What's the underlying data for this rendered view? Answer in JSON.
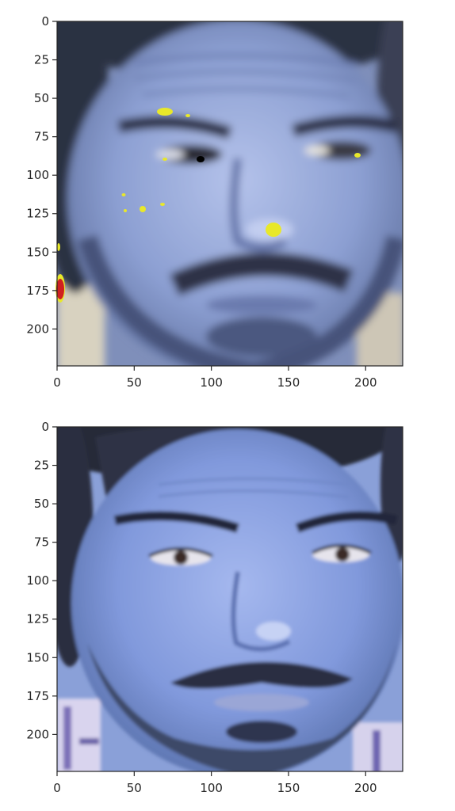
{
  "panels": [
    {
      "id": "saliency-overlay",
      "x_ticks": [
        "0",
        "50",
        "100",
        "150",
        "200"
      ],
      "y_ticks": [
        "0",
        "25",
        "50",
        "75",
        "100",
        "125",
        "150",
        "175",
        "200"
      ],
      "x_range": [
        0,
        224
      ],
      "y_range": [
        0,
        224
      ],
      "highlight_colors": [
        "#e8e82a",
        "#d02020",
        "#000000"
      ]
    },
    {
      "id": "original-face",
      "x_ticks": [
        "0",
        "50",
        "100",
        "150",
        "200"
      ],
      "y_ticks": [
        "0",
        "25",
        "50",
        "75",
        "100",
        "125",
        "150",
        "175",
        "200"
      ],
      "x_range": [
        0,
        224
      ],
      "y_range": [
        0,
        224
      ]
    }
  ],
  "colors": {
    "skin": "#8fa3d8",
    "skin_dark": "#5a6ea8",
    "hair": "#2a2f3f",
    "axis": "#262626"
  }
}
